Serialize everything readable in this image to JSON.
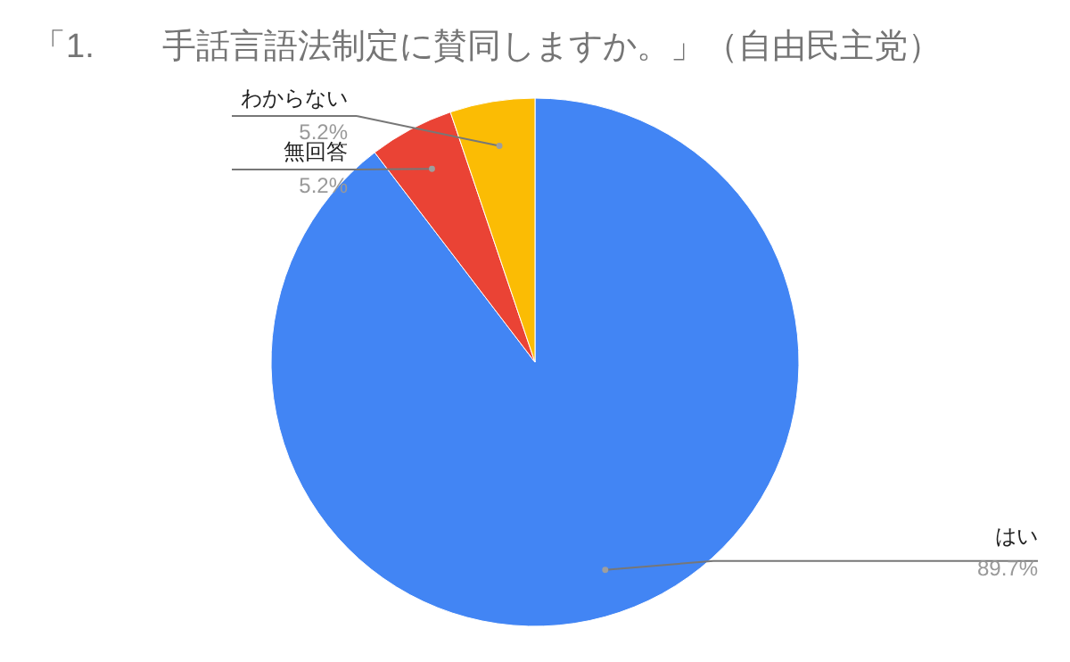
{
  "chart_data": {
    "type": "pie",
    "title": "「1.　　手話言語法制定に賛同しますか。」（自由民主党）",
    "categories": [
      "はい",
      "無回答",
      "わからない"
    ],
    "values": [
      89.7,
      5.2,
      5.2
    ],
    "value_labels": [
      "89.7%",
      "5.2%",
      "5.2%"
    ],
    "colors": [
      "#4285f4",
      "#ea4335",
      "#fbbc04"
    ],
    "legend": false
  }
}
